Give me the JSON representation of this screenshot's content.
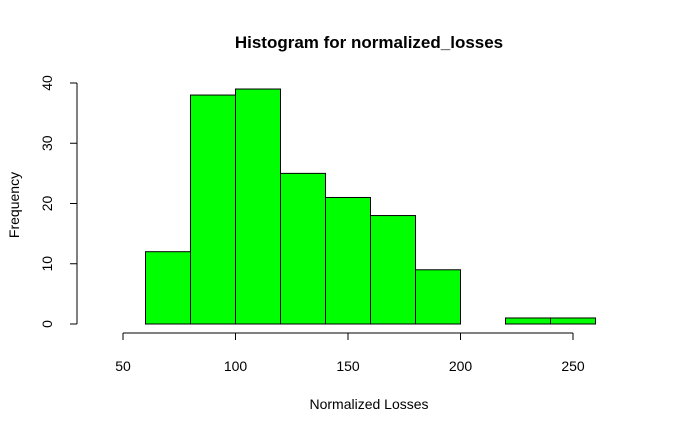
{
  "chart_data": {
    "type": "bar",
    "title": "Histogram for normalized_losses",
    "xlabel": "Normalized Losses",
    "ylabel": "Frequency",
    "bar_color": "#00ff00",
    "border_color": "#000000",
    "bins": [
      {
        "start": 60,
        "end": 80,
        "count": 12
      },
      {
        "start": 80,
        "end": 100,
        "count": 38
      },
      {
        "start": 100,
        "end": 120,
        "count": 39
      },
      {
        "start": 120,
        "end": 140,
        "count": 25
      },
      {
        "start": 140,
        "end": 160,
        "count": 21
      },
      {
        "start": 160,
        "end": 180,
        "count": 18
      },
      {
        "start": 180,
        "end": 200,
        "count": 9
      },
      {
        "start": 200,
        "end": 220,
        "count": 0
      },
      {
        "start": 220,
        "end": 240,
        "count": 1
      },
      {
        "start": 240,
        "end": 260,
        "count": 1
      }
    ],
    "xlim": [
      50,
      260
    ],
    "ylim": [
      0,
      40
    ],
    "x_ticks": [
      "50",
      "100",
      "150",
      "200",
      "250"
    ],
    "y_ticks": [
      "0",
      "10",
      "20",
      "30",
      "40"
    ],
    "grid": false,
    "legend": "none"
  }
}
